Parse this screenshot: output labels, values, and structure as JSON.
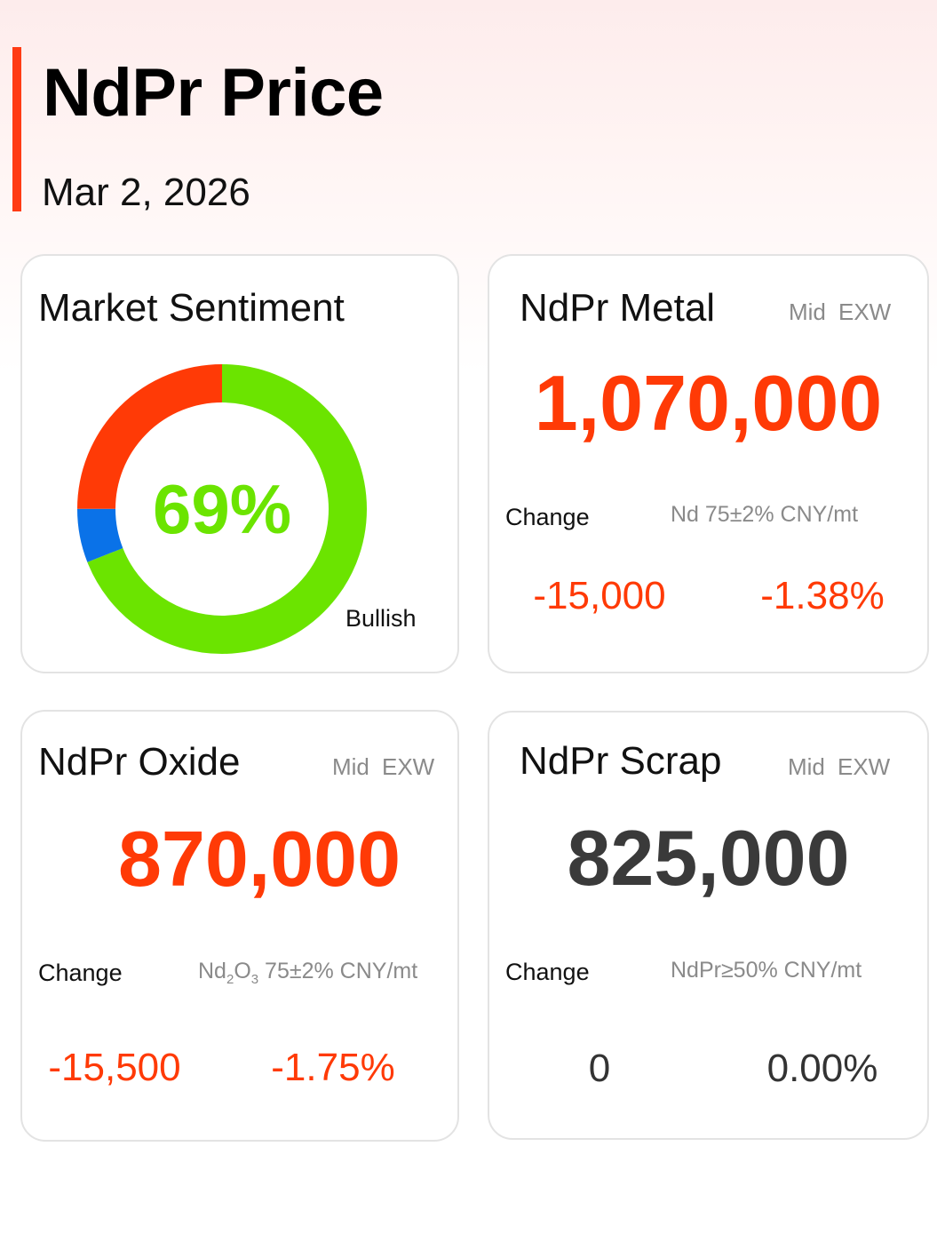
{
  "header": {
    "title": "NdPr Price",
    "date": "Mar 2, 2026",
    "accent_color": "#ff3b14"
  },
  "sentiment": {
    "title": "Market Sentiment",
    "percent_label": "69%",
    "label": "Bullish",
    "segments": [
      {
        "name": "bullish",
        "percent": 69,
        "color": "#6be400"
      },
      {
        "name": "neutral",
        "percent": 6,
        "color": "#0a72e8"
      },
      {
        "name": "bearish",
        "percent": 25,
        "color": "#ff3a06"
      }
    ]
  },
  "cards": {
    "metal": {
      "title": "NdPr Metal",
      "tag1": "Mid",
      "tag2": "EXW",
      "price": "1,070,000",
      "price_color": "#ff3a06",
      "change_label": "Change",
      "spec": "Nd 75±2% CNY/mt",
      "change_abs": "-15,000",
      "change_pct": "-1.38%",
      "change_color": "#ff3a06"
    },
    "oxide": {
      "title": "NdPr Oxide",
      "tag1": "Mid",
      "tag2": "EXW",
      "price": "870,000",
      "price_color": "#ff3a06",
      "change_label": "Change",
      "spec_prefix": "Nd",
      "spec_sub1": "2",
      "spec_mid": "O",
      "spec_sub2": "3",
      "spec_suffix": " 75±2% CNY/mt",
      "change_abs": "-15,500",
      "change_pct": "-1.75%",
      "change_color": "#ff3a06"
    },
    "scrap": {
      "title": "NdPr Scrap",
      "tag1": "Mid",
      "tag2": "EXW",
      "price": "825,000",
      "price_color": "#3a3a3a",
      "change_label": "Change",
      "spec": "NdPr≥50% CNY/mt",
      "change_abs": "0",
      "change_pct": "0.00%",
      "change_color": "#333333"
    }
  }
}
